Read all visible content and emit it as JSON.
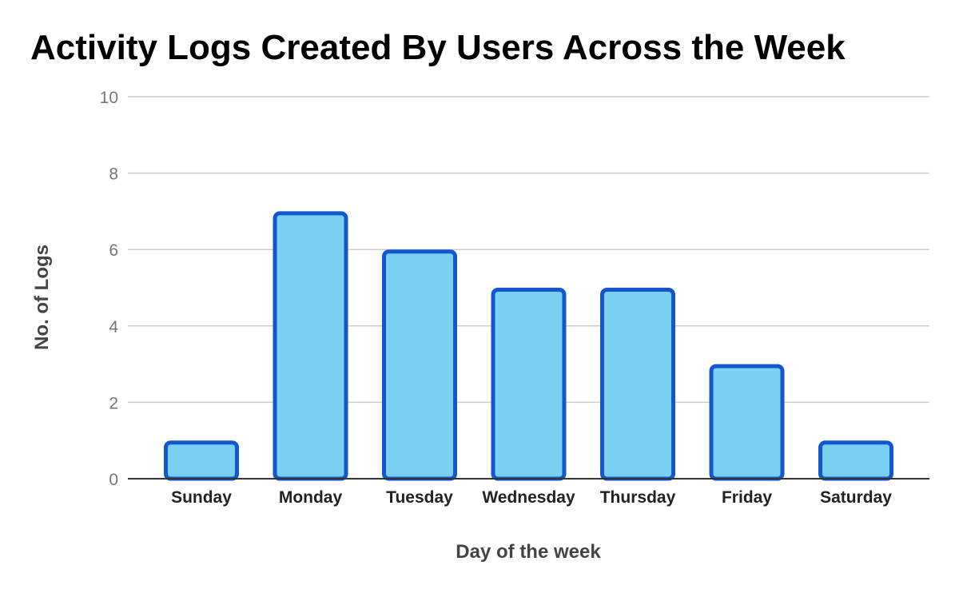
{
  "chart_data": {
    "type": "bar",
    "title": "Activity Logs Created By Users Across the Week",
    "xlabel": "Day of the week",
    "ylabel": "No. of Logs",
    "categories": [
      "Sunday",
      "Monday",
      "Tuesday",
      "Wednesday",
      "Thursday",
      "Friday",
      "Saturday"
    ],
    "values": [
      1,
      7,
      6,
      5,
      5,
      3,
      1
    ],
    "ylim": [
      0,
      10
    ],
    "yticks": [
      0,
      2,
      4,
      6,
      8,
      10
    ],
    "grid": true,
    "legend": "none",
    "colors": {
      "bar_fill": "#7ad0f0",
      "bar_stroke": "#1456cc",
      "grid": "#cccccc",
      "baseline": "#333333"
    }
  }
}
